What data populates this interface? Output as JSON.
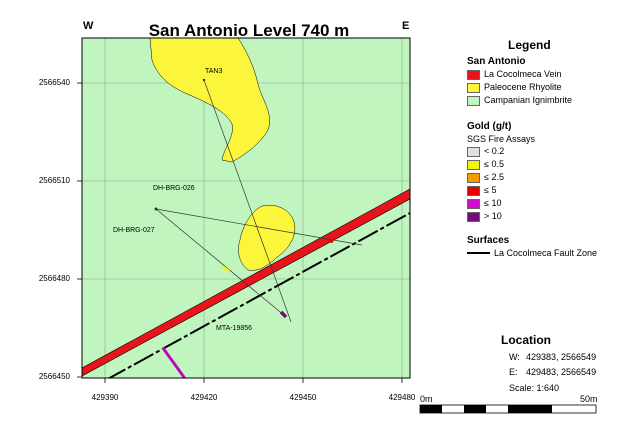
{
  "map": {
    "title": "San Antonio Level 740 m",
    "west_label": "W",
    "east_label": "E",
    "y_ticks": [
      "2566540",
      "2566510",
      "2566480",
      "2566450"
    ],
    "x_ticks": [
      "429390",
      "429420",
      "429450",
      "429480"
    ],
    "labels": {
      "tan3": "TAN3",
      "dh_brg_026": "DH-BRG-026",
      "dh_brg_027": "DH-BRG-027",
      "mta_19856": "MTA-19856"
    }
  },
  "legend": {
    "heading": "Legend",
    "geology_title": "San Antonio",
    "geology": [
      {
        "label": "La Cocolmeca Vein",
        "color": "#e8141b"
      },
      {
        "label": "Paleocene  Rhyolite",
        "color": "#fbf53c"
      },
      {
        "label": "Campanian Ignimbrite",
        "color": "#c0f5c0"
      }
    ],
    "gold_title": "Gold (g/t)",
    "gold_subtitle": "SGS Fire Assays",
    "gold": [
      {
        "label": "< 0.2",
        "color": "#e0e0e0"
      },
      {
        "label": "≤ 0.5",
        "color": "#f5f500"
      },
      {
        "label": "≤ 2.5",
        "color": "#f59a00"
      },
      {
        "label": "≤ 5",
        "color": "#e80000"
      },
      {
        "label": "≤ 10",
        "color": "#cc10cc"
      },
      {
        "label": "> 10",
        "color": "#7a0a7a"
      }
    ],
    "surfaces_title": "Surfaces",
    "surfaces": [
      {
        "label": "La Cocolmeca Fault Zone"
      }
    ]
  },
  "location": {
    "heading": "Location",
    "west_key": "W:",
    "west_value": "429383, 2566549",
    "east_key": "E:",
    "east_value": "429483, 2566549",
    "scale_label": "Scale: 1:640",
    "scalebar_start": "0m",
    "scalebar_end": "50m"
  },
  "colors": {
    "ignimbrite": "#c0f5c0",
    "rhyolite": "#fbf53c",
    "vein": "#e8141b",
    "fault": "#000000",
    "grid": "#8aa88a"
  }
}
